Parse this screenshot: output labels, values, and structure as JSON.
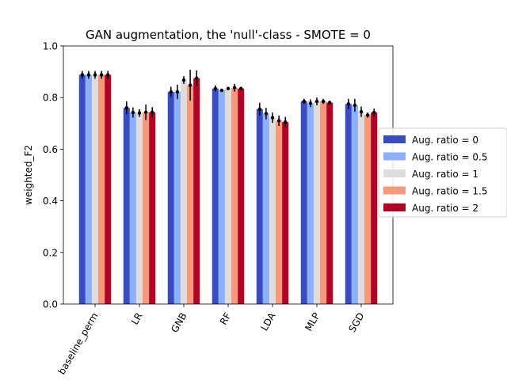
{
  "chart_data": {
    "type": "bar",
    "title": "GAN augmentation, the 'null'-class - SMOTE = 0",
    "xlabel": "",
    "ylabel": "weighted_F2",
    "ylim": [
      0,
      1.0
    ],
    "yticks": [
      "0.0",
      "0.2",
      "0.4",
      "0.6",
      "0.8",
      "1.0"
    ],
    "categories": [
      "baseline_perm",
      "LR",
      "GNB",
      "RF",
      "LDA",
      "MLP",
      "SGD"
    ],
    "legend_position": "right",
    "series": [
      {
        "name": "Aug. ratio = 0",
        "color": "#3b4cc0",
        "values": [
          0.888,
          0.76,
          0.822,
          0.835,
          0.755,
          0.785,
          0.775
        ],
        "errors": [
          0.015,
          0.025,
          0.02,
          0.012,
          0.025,
          0.01,
          0.02
        ]
      },
      {
        "name": "Aug. ratio = 0.5",
        "color": "#8db0fe",
        "values": [
          0.888,
          0.742,
          0.822,
          0.828,
          0.738,
          0.778,
          0.77
        ],
        "errors": [
          0.015,
          0.02,
          0.028,
          0.006,
          0.022,
          0.015,
          0.025
        ]
      },
      {
        "name": "Aug. ratio = 1",
        "color": "#dddddd",
        "values": [
          0.888,
          0.74,
          0.868,
          0.835,
          0.722,
          0.785,
          0.745
        ],
        "errors": [
          0.015,
          0.015,
          0.015,
          0.006,
          0.02,
          0.015,
          0.02
        ]
      },
      {
        "name": "Aug. ratio = 1.5",
        "color": "#f49a7b",
        "values": [
          0.888,
          0.743,
          0.848,
          0.838,
          0.71,
          0.785,
          0.732
        ],
        "errors": [
          0.015,
          0.03,
          0.06,
          0.015,
          0.02,
          0.01,
          0.01
        ]
      },
      {
        "name": "Aug. ratio = 2",
        "color": "#b40426",
        "values": [
          0.888,
          0.743,
          0.875,
          0.835,
          0.705,
          0.78,
          0.742
        ],
        "errors": [
          0.015,
          0.02,
          0.03,
          0.006,
          0.02,
          0.008,
          0.015
        ]
      }
    ]
  }
}
